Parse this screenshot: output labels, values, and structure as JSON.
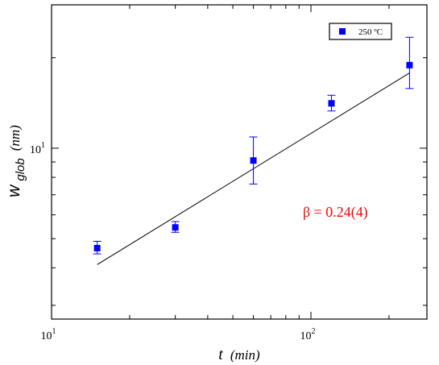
{
  "chart_data": {
    "type": "scatter",
    "x_scale": "log",
    "y_scale": "log",
    "xlim": [
      10,
      280
    ],
    "ylim": [
      2.7,
      30
    ],
    "x_ticks": [
      {
        "value": 10,
        "base": "10",
        "exp": "1"
      },
      {
        "value": 100,
        "base": "10",
        "exp": "2"
      }
    ],
    "y_ticks": [
      {
        "value": 10,
        "base": "10",
        "exp": "1"
      }
    ],
    "x_minor_ticks": [
      20,
      30,
      40,
      50,
      60,
      70,
      80,
      90,
      200
    ],
    "y_minor_ticks": [
      3,
      4,
      5,
      6,
      7,
      8,
      9,
      20
    ],
    "xlabel": {
      "main": "t",
      "unit": "(min)"
    },
    "ylabel": {
      "main": "w",
      "sub": "glob",
      "unit": "(nm)"
    },
    "series": [
      {
        "name": "250 ºC",
        "color": "#0000ff",
        "marker": "square",
        "points": [
          {
            "x": 15,
            "y": 4.65,
            "err_low": 0.2,
            "err_high": 0.25
          },
          {
            "x": 30,
            "y": 5.45,
            "err_low": 0.2,
            "err_high": 0.25
          },
          {
            "x": 60,
            "y": 9.1,
            "err_low": 1.5,
            "err_high": 1.8
          },
          {
            "x": 120,
            "y": 14.1,
            "err_low": 0.8,
            "err_high": 0.9
          },
          {
            "x": 240,
            "y": 18.9,
            "err_low": 3.1,
            "err_high": 4.5
          }
        ]
      }
    ],
    "fit_line": {
      "color": "#000000",
      "x_start": 15,
      "y_start": 4.1,
      "x_end": 240,
      "y_end": 17.8
    },
    "legend": {
      "position": "top-right"
    },
    "annotation": {
      "text": "β = 0.24(4)",
      "color": "#ff0000"
    },
    "grid": false
  }
}
